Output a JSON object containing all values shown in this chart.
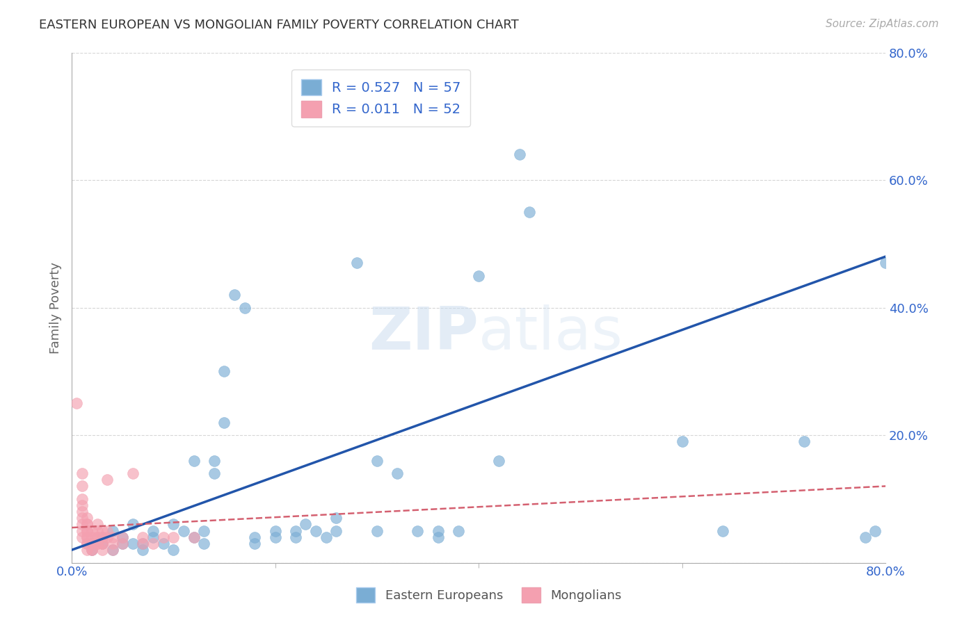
{
  "title": "EASTERN EUROPEAN VS MONGOLIAN FAMILY POVERTY CORRELATION CHART",
  "source": "Source: ZipAtlas.com",
  "ylabel": "Family Poverty",
  "xlim": [
    0,
    0.8
  ],
  "ylim": [
    0,
    0.8
  ],
  "blue_color": "#7aadd4",
  "pink_color": "#f4a0b0",
  "blue_line_color": "#2255aa",
  "pink_line_color": "#d46070",
  "blue_r": "0.527",
  "blue_n": "57",
  "pink_r": "0.011",
  "pink_n": "52",
  "watermark_zip": "ZIP",
  "watermark_atlas": "atlas",
  "background_color": "#ffffff",
  "legend_text_color": "#3366cc",
  "blue_scatter": [
    [
      0.02,
      0.03
    ],
    [
      0.02,
      0.02
    ],
    [
      0.03,
      0.04
    ],
    [
      0.03,
      0.03
    ],
    [
      0.04,
      0.02
    ],
    [
      0.04,
      0.05
    ],
    [
      0.05,
      0.03
    ],
    [
      0.05,
      0.04
    ],
    [
      0.06,
      0.03
    ],
    [
      0.06,
      0.06
    ],
    [
      0.07,
      0.02
    ],
    [
      0.07,
      0.03
    ],
    [
      0.08,
      0.05
    ],
    [
      0.08,
      0.04
    ],
    [
      0.09,
      0.03
    ],
    [
      0.1,
      0.02
    ],
    [
      0.1,
      0.06
    ],
    [
      0.11,
      0.05
    ],
    [
      0.12,
      0.04
    ],
    [
      0.12,
      0.16
    ],
    [
      0.13,
      0.03
    ],
    [
      0.13,
      0.05
    ],
    [
      0.14,
      0.14
    ],
    [
      0.14,
      0.16
    ],
    [
      0.15,
      0.3
    ],
    [
      0.15,
      0.22
    ],
    [
      0.16,
      0.42
    ],
    [
      0.17,
      0.4
    ],
    [
      0.18,
      0.03
    ],
    [
      0.18,
      0.04
    ],
    [
      0.2,
      0.05
    ],
    [
      0.2,
      0.04
    ],
    [
      0.22,
      0.04
    ],
    [
      0.22,
      0.05
    ],
    [
      0.23,
      0.06
    ],
    [
      0.24,
      0.05
    ],
    [
      0.25,
      0.04
    ],
    [
      0.26,
      0.05
    ],
    [
      0.26,
      0.07
    ],
    [
      0.28,
      0.47
    ],
    [
      0.3,
      0.16
    ],
    [
      0.3,
      0.05
    ],
    [
      0.32,
      0.14
    ],
    [
      0.34,
      0.05
    ],
    [
      0.36,
      0.04
    ],
    [
      0.36,
      0.05
    ],
    [
      0.38,
      0.05
    ],
    [
      0.4,
      0.45
    ],
    [
      0.42,
      0.16
    ],
    [
      0.44,
      0.64
    ],
    [
      0.45,
      0.55
    ],
    [
      0.6,
      0.19
    ],
    [
      0.64,
      0.05
    ],
    [
      0.72,
      0.19
    ],
    [
      0.78,
      0.04
    ],
    [
      0.79,
      0.05
    ],
    [
      0.8,
      0.47
    ]
  ],
  "pink_scatter": [
    [
      0.005,
      0.25
    ],
    [
      0.01,
      0.12
    ],
    [
      0.01,
      0.14
    ],
    [
      0.01,
      0.1
    ],
    [
      0.01,
      0.09
    ],
    [
      0.01,
      0.08
    ],
    [
      0.01,
      0.07
    ],
    [
      0.01,
      0.06
    ],
    [
      0.01,
      0.05
    ],
    [
      0.01,
      0.04
    ],
    [
      0.015,
      0.04
    ],
    [
      0.015,
      0.05
    ],
    [
      0.015,
      0.06
    ],
    [
      0.015,
      0.07
    ],
    [
      0.015,
      0.06
    ],
    [
      0.015,
      0.05
    ],
    [
      0.015,
      0.04
    ],
    [
      0.015,
      0.03
    ],
    [
      0.015,
      0.03
    ],
    [
      0.015,
      0.02
    ],
    [
      0.02,
      0.03
    ],
    [
      0.02,
      0.04
    ],
    [
      0.02,
      0.05
    ],
    [
      0.02,
      0.03
    ],
    [
      0.02,
      0.02
    ],
    [
      0.02,
      0.02
    ],
    [
      0.025,
      0.03
    ],
    [
      0.025,
      0.04
    ],
    [
      0.025,
      0.05
    ],
    [
      0.025,
      0.06
    ],
    [
      0.025,
      0.04
    ],
    [
      0.025,
      0.03
    ],
    [
      0.03,
      0.03
    ],
    [
      0.03,
      0.04
    ],
    [
      0.03,
      0.05
    ],
    [
      0.03,
      0.03
    ],
    [
      0.03,
      0.02
    ],
    [
      0.035,
      0.04
    ],
    [
      0.035,
      0.05
    ],
    [
      0.035,
      0.13
    ],
    [
      0.04,
      0.04
    ],
    [
      0.04,
      0.03
    ],
    [
      0.04,
      0.02
    ],
    [
      0.05,
      0.04
    ],
    [
      0.05,
      0.03
    ],
    [
      0.06,
      0.14
    ],
    [
      0.07,
      0.04
    ],
    [
      0.07,
      0.03
    ],
    [
      0.08,
      0.03
    ],
    [
      0.09,
      0.04
    ],
    [
      0.1,
      0.04
    ],
    [
      0.12,
      0.04
    ]
  ],
  "blue_trend_x": [
    0.0,
    0.8
  ],
  "blue_trend_y": [
    0.02,
    0.48
  ],
  "pink_trend_x": [
    0.0,
    0.8
  ],
  "pink_trend_y": [
    0.055,
    0.12
  ]
}
